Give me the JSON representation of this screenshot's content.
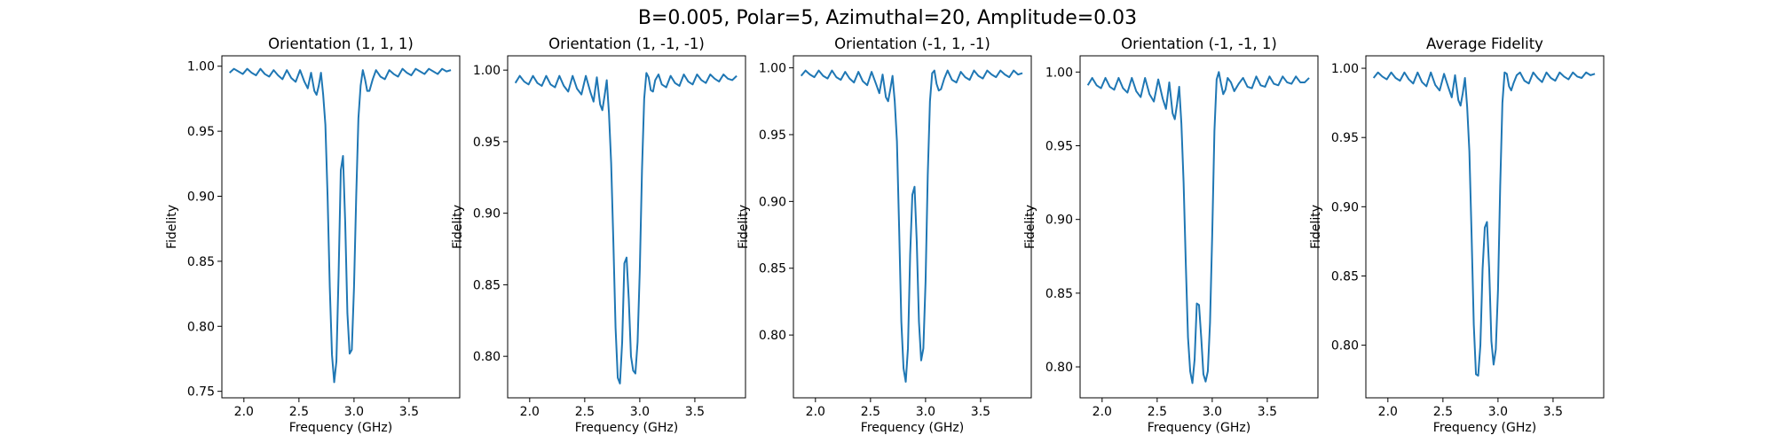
{
  "figure": {
    "title": "B=0.005, Polar=5, Azimuthal=20, Amplitude=0.03"
  },
  "chart_data": [
    {
      "type": "line",
      "title": "Orientation (1, 1, 1)",
      "xlabel": "Frequency (GHz)",
      "ylabel": "Fidelity",
      "xlim": [
        1.8,
        3.96
      ],
      "ylim": [
        0.745,
        1.008
      ],
      "xticks": [
        2.0,
        2.5,
        3.0,
        3.5
      ],
      "yticks": [
        0.75,
        0.8,
        0.85,
        0.9,
        0.95,
        1.0
      ],
      "line_color": "#1f77b4",
      "series": [
        {
          "x": [
            1.87,
            1.91,
            1.95,
            1.99,
            2.03,
            2.07,
            2.11,
            2.15,
            2.19,
            2.23,
            2.27,
            2.31,
            2.35,
            2.39,
            2.43,
            2.47,
            2.51,
            2.55,
            2.58,
            2.61,
            2.64,
            2.66,
            2.68,
            2.7,
            2.72,
            2.74,
            2.76,
            2.78,
            2.8,
            2.82,
            2.84,
            2.86,
            2.88,
            2.9,
            2.92,
            2.94,
            2.96,
            2.98,
            3.0,
            3.02,
            3.04,
            3.06,
            3.08,
            3.1,
            3.12,
            3.14,
            3.17,
            3.2,
            3.24,
            3.28,
            3.32,
            3.36,
            3.4,
            3.44,
            3.48,
            3.52,
            3.56,
            3.6,
            3.64,
            3.68,
            3.72,
            3.76,
            3.8,
            3.84,
            3.88
          ],
          "y": [
            0.995,
            0.998,
            0.996,
            0.994,
            0.998,
            0.995,
            0.993,
            0.998,
            0.994,
            0.992,
            0.997,
            0.993,
            0.99,
            0.997,
            0.991,
            0.988,
            0.997,
            0.988,
            0.983,
            0.995,
            0.981,
            0.978,
            0.985,
            0.995,
            0.978,
            0.955,
            0.9,
            0.83,
            0.778,
            0.757,
            0.773,
            0.84,
            0.92,
            0.931,
            0.88,
            0.81,
            0.779,
            0.782,
            0.83,
            0.9,
            0.96,
            0.985,
            0.997,
            0.99,
            0.981,
            0.981,
            0.99,
            0.997,
            0.992,
            0.99,
            0.997,
            0.994,
            0.992,
            0.998,
            0.995,
            0.993,
            0.998,
            0.996,
            0.994,
            0.998,
            0.996,
            0.994,
            0.998,
            0.996,
            0.997
          ]
        }
      ]
    },
    {
      "type": "line",
      "title": "Orientation (1, -1, -1)",
      "xlabel": "Frequency (GHz)",
      "ylabel": "Fidelity",
      "xlim": [
        1.8,
        3.96
      ],
      "ylim": [
        0.771,
        1.01
      ],
      "xticks": [
        2.0,
        2.5,
        3.0,
        3.5
      ],
      "yticks": [
        0.8,
        0.85,
        0.9,
        0.95,
        1.0
      ],
      "line_color": "#1f77b4",
      "series": [
        {
          "x": [
            1.87,
            1.91,
            1.95,
            1.99,
            2.03,
            2.07,
            2.11,
            2.15,
            2.19,
            2.23,
            2.27,
            2.31,
            2.35,
            2.39,
            2.43,
            2.47,
            2.51,
            2.55,
            2.58,
            2.61,
            2.64,
            2.66,
            2.68,
            2.7,
            2.72,
            2.74,
            2.76,
            2.78,
            2.8,
            2.82,
            2.84,
            2.86,
            2.88,
            2.9,
            2.92,
            2.94,
            2.96,
            2.98,
            3.0,
            3.02,
            3.04,
            3.06,
            3.08,
            3.1,
            3.12,
            3.14,
            3.17,
            3.2,
            3.24,
            3.28,
            3.32,
            3.36,
            3.4,
            3.44,
            3.48,
            3.52,
            3.56,
            3.6,
            3.64,
            3.68,
            3.72,
            3.76,
            3.8,
            3.84,
            3.88
          ],
          "y": [
            0.991,
            0.996,
            0.992,
            0.99,
            0.996,
            0.991,
            0.989,
            0.996,
            0.99,
            0.988,
            0.996,
            0.989,
            0.985,
            0.996,
            0.987,
            0.983,
            0.996,
            0.985,
            0.978,
            0.995,
            0.976,
            0.972,
            0.982,
            0.993,
            0.97,
            0.935,
            0.88,
            0.82,
            0.785,
            0.781,
            0.81,
            0.865,
            0.869,
            0.84,
            0.8,
            0.79,
            0.788,
            0.81,
            0.86,
            0.93,
            0.98,
            0.998,
            0.995,
            0.986,
            0.985,
            0.993,
            0.997,
            0.99,
            0.988,
            0.996,
            0.991,
            0.989,
            0.997,
            0.992,
            0.99,
            0.997,
            0.993,
            0.991,
            0.997,
            0.994,
            0.992,
            0.997,
            0.994,
            0.993,
            0.996
          ]
        }
      ]
    },
    {
      "type": "line",
      "title": "Orientation (-1, 1, -1)",
      "xlabel": "Frequency (GHz)",
      "ylabel": "Fidelity",
      "xlim": [
        1.8,
        3.96
      ],
      "ylim": [
        0.753,
        1.009
      ],
      "xticks": [
        2.0,
        2.5,
        3.0,
        3.5
      ],
      "yticks": [
        0.8,
        0.85,
        0.9,
        0.95,
        1.0
      ],
      "line_color": "#1f77b4",
      "series": [
        {
          "x": [
            1.87,
            1.91,
            1.95,
            1.99,
            2.03,
            2.07,
            2.11,
            2.15,
            2.19,
            2.23,
            2.27,
            2.31,
            2.35,
            2.39,
            2.43,
            2.47,
            2.51,
            2.55,
            2.58,
            2.61,
            2.64,
            2.66,
            2.68,
            2.7,
            2.72,
            2.74,
            2.76,
            2.78,
            2.8,
            2.82,
            2.84,
            2.86,
            2.88,
            2.9,
            2.92,
            2.94,
            2.96,
            2.98,
            3.0,
            3.02,
            3.04,
            3.06,
            3.08,
            3.1,
            3.12,
            3.14,
            3.17,
            3.2,
            3.24,
            3.28,
            3.32,
            3.36,
            3.4,
            3.44,
            3.48,
            3.52,
            3.56,
            3.6,
            3.64,
            3.68,
            3.72,
            3.76,
            3.8,
            3.84,
            3.88
          ],
          "y": [
            0.994,
            0.998,
            0.995,
            0.993,
            0.998,
            0.994,
            0.992,
            0.998,
            0.993,
            0.991,
            0.997,
            0.992,
            0.989,
            0.997,
            0.99,
            0.987,
            0.997,
            0.988,
            0.981,
            0.995,
            0.978,
            0.975,
            0.984,
            0.994,
            0.975,
            0.945,
            0.88,
            0.81,
            0.775,
            0.765,
            0.79,
            0.86,
            0.905,
            0.911,
            0.87,
            0.81,
            0.781,
            0.79,
            0.84,
            0.92,
            0.975,
            0.996,
            0.998,
            0.988,
            0.983,
            0.984,
            0.992,
            0.998,
            0.991,
            0.989,
            0.997,
            0.993,
            0.991,
            0.998,
            0.994,
            0.992,
            0.998,
            0.995,
            0.993,
            0.998,
            0.995,
            0.993,
            0.998,
            0.995,
            0.996
          ]
        }
      ]
    },
    {
      "type": "line",
      "title": "Orientation (-1, -1, 1)",
      "xlabel": "Frequency (GHz)",
      "ylabel": "Fidelity",
      "xlim": [
        1.8,
        3.96
      ],
      "ylim": [
        0.779,
        1.011
      ],
      "xticks": [
        2.0,
        2.5,
        3.0,
        3.5
      ],
      "yticks": [
        0.8,
        0.85,
        0.9,
        0.95,
        1.0
      ],
      "line_color": "#1f77b4",
      "series": [
        {
          "x": [
            1.87,
            1.91,
            1.95,
            1.99,
            2.03,
            2.07,
            2.11,
            2.15,
            2.19,
            2.23,
            2.27,
            2.31,
            2.35,
            2.39,
            2.43,
            2.47,
            2.51,
            2.55,
            2.58,
            2.61,
            2.64,
            2.66,
            2.68,
            2.7,
            2.72,
            2.74,
            2.76,
            2.78,
            2.8,
            2.82,
            2.84,
            2.86,
            2.88,
            2.9,
            2.92,
            2.94,
            2.96,
            2.98,
            3.0,
            3.02,
            3.04,
            3.06,
            3.08,
            3.1,
            3.12,
            3.14,
            3.17,
            3.2,
            3.24,
            3.28,
            3.32,
            3.36,
            3.4,
            3.44,
            3.48,
            3.52,
            3.56,
            3.6,
            3.64,
            3.68,
            3.72,
            3.76,
            3.8,
            3.84,
            3.88
          ],
          "y": [
            0.991,
            0.996,
            0.991,
            0.989,
            0.996,
            0.99,
            0.988,
            0.996,
            0.989,
            0.986,
            0.996,
            0.987,
            0.983,
            0.996,
            0.985,
            0.98,
            0.995,
            0.982,
            0.975,
            0.993,
            0.972,
            0.968,
            0.978,
            0.99,
            0.965,
            0.925,
            0.87,
            0.82,
            0.797,
            0.789,
            0.805,
            0.843,
            0.842,
            0.82,
            0.795,
            0.79,
            0.797,
            0.83,
            0.89,
            0.96,
            0.995,
            1.0,
            0.992,
            0.985,
            0.988,
            0.996,
            0.993,
            0.987,
            0.992,
            0.996,
            0.99,
            0.989,
            0.997,
            0.991,
            0.99,
            0.997,
            0.992,
            0.991,
            0.997,
            0.993,
            0.992,
            0.997,
            0.993,
            0.993,
            0.996
          ]
        }
      ]
    },
    {
      "type": "line",
      "title": "Average Fidelity",
      "xlabel": "Frequency (GHz)",
      "ylabel": "Fidelity",
      "xlim": [
        1.8,
        3.96
      ],
      "ylim": [
        0.762,
        1.009
      ],
      "xticks": [
        2.0,
        2.5,
        3.0,
        3.5
      ],
      "yticks": [
        0.8,
        0.85,
        0.9,
        0.95,
        1.0
      ],
      "line_color": "#1f77b4",
      "series": [
        {
          "x": [
            1.87,
            1.91,
            1.95,
            1.99,
            2.03,
            2.07,
            2.11,
            2.15,
            2.19,
            2.23,
            2.27,
            2.31,
            2.35,
            2.39,
            2.43,
            2.47,
            2.51,
            2.55,
            2.58,
            2.61,
            2.64,
            2.66,
            2.68,
            2.7,
            2.72,
            2.74,
            2.76,
            2.78,
            2.8,
            2.82,
            2.84,
            2.86,
            2.88,
            2.9,
            2.92,
            2.94,
            2.96,
            2.98,
            3.0,
            3.02,
            3.04,
            3.06,
            3.08,
            3.1,
            3.12,
            3.14,
            3.17,
            3.2,
            3.24,
            3.28,
            3.32,
            3.36,
            3.4,
            3.44,
            3.48,
            3.52,
            3.56,
            3.6,
            3.64,
            3.68,
            3.72,
            3.76,
            3.8,
            3.84,
            3.88
          ],
          "y": [
            0.993,
            0.997,
            0.994,
            0.992,
            0.997,
            0.993,
            0.991,
            0.997,
            0.992,
            0.989,
            0.997,
            0.99,
            0.987,
            0.997,
            0.988,
            0.984,
            0.996,
            0.986,
            0.979,
            0.995,
            0.977,
            0.973,
            0.982,
            0.993,
            0.972,
            0.94,
            0.88,
            0.815,
            0.779,
            0.778,
            0.8,
            0.855,
            0.885,
            0.889,
            0.855,
            0.803,
            0.786,
            0.797,
            0.84,
            0.915,
            0.975,
            0.997,
            0.996,
            0.987,
            0.984,
            0.989,
            0.995,
            0.997,
            0.991,
            0.989,
            0.997,
            0.993,
            0.99,
            0.997,
            0.993,
            0.991,
            0.997,
            0.994,
            0.992,
            0.997,
            0.994,
            0.993,
            0.997,
            0.995,
            0.996
          ]
        }
      ]
    }
  ]
}
